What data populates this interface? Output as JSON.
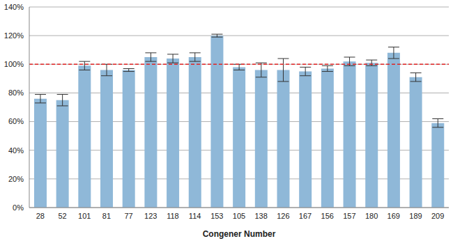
{
  "chart_data": {
    "type": "bar",
    "x_label": "Congener Number",
    "categories": [
      "28",
      "52",
      "101",
      "81",
      "77",
      "123",
      "118",
      "114",
      "153",
      "105",
      "138",
      "126",
      "167",
      "156",
      "157",
      "180",
      "169",
      "189",
      "209"
    ],
    "values": [
      76,
      75,
      99,
      96,
      96,
      105,
      104,
      105,
      120,
      98,
      96,
      96,
      95,
      97,
      102,
      101,
      108,
      91,
      59
    ],
    "error": [
      3,
      4,
      3,
      4,
      1,
      3,
      3,
      3,
      1,
      2,
      5,
      8,
      3,
      2,
      3,
      2,
      4,
      3,
      3
    ],
    "color": "#8fb8d8",
    "ylim": [
      0,
      140
    ],
    "yticks": [
      {
        "value": 0,
        "label": "0%"
      },
      {
        "value": 20,
        "label": "20%"
      },
      {
        "value": 40,
        "label": "40%"
      },
      {
        "value": 60,
        "label": "60%"
      },
      {
        "value": 80,
        "label": "80%"
      },
      {
        "value": 100,
        "label": "100%"
      },
      {
        "value": 120,
        "label": "120%"
      },
      {
        "value": 140,
        "label": "140%"
      }
    ],
    "grid": true,
    "reference_line": {
      "value": 100,
      "color": "#e02424",
      "line_style": "dashed"
    }
  }
}
